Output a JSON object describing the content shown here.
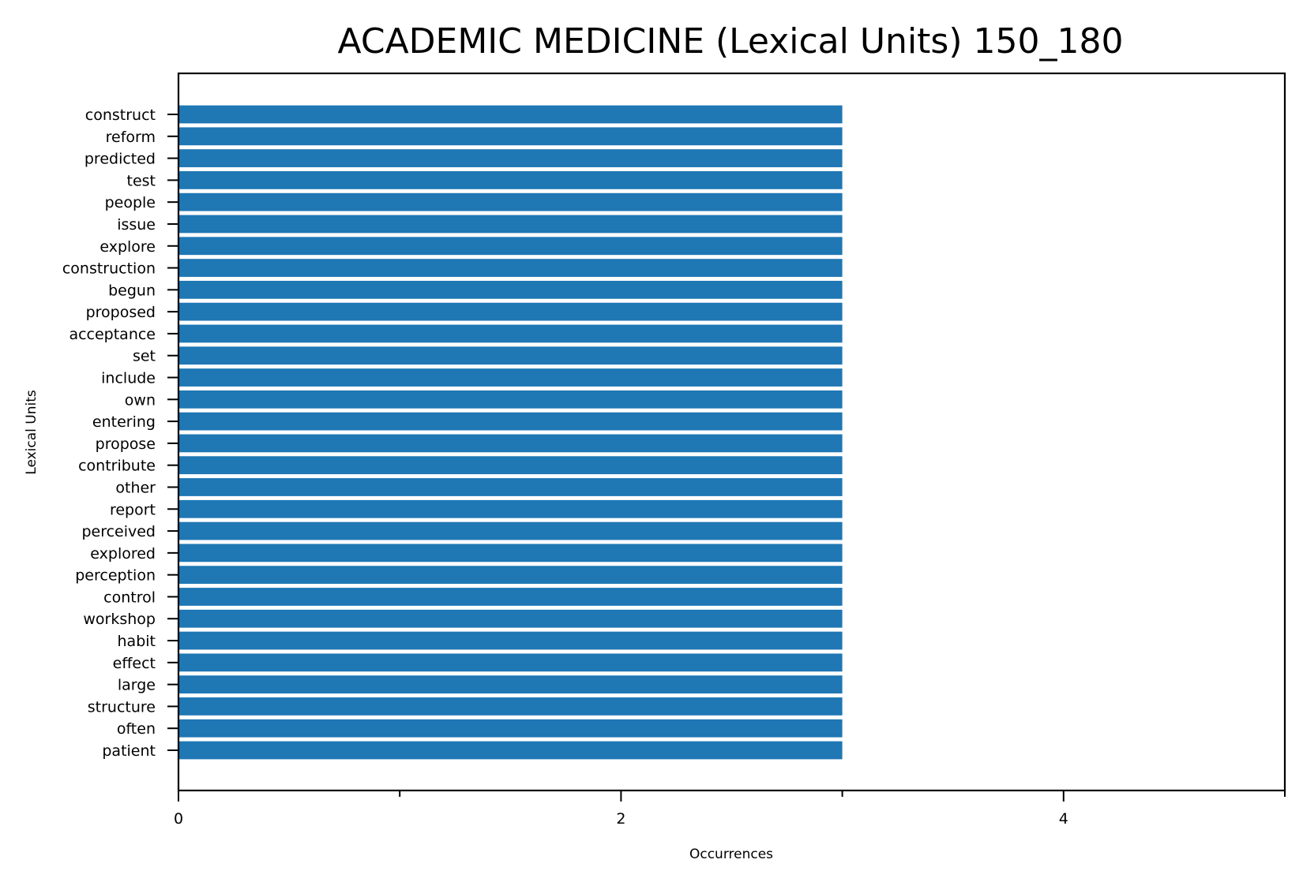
{
  "chart_data": {
    "type": "bar",
    "orientation": "horizontal",
    "title": "ACADEMIC MEDICINE (Lexical Units) 150_180",
    "xlabel": "Occurrences",
    "ylabel": "Lexical Units",
    "xlim": [
      0,
      5
    ],
    "xticks": [
      0,
      2,
      4
    ],
    "categories": [
      "construct",
      "reform",
      "predicted",
      "test",
      "people",
      "issue",
      "explore",
      "construction",
      "begun",
      "proposed",
      "acceptance",
      "set",
      "include",
      "own",
      "entering",
      "propose",
      "contribute",
      "other",
      "report",
      "perceived",
      "explored",
      "perception",
      "control",
      "workshop",
      "habit",
      "effect",
      "large",
      "structure",
      "often",
      "patient"
    ],
    "values": [
      3,
      3,
      3,
      3,
      3,
      3,
      3,
      3,
      3,
      3,
      3,
      3,
      3,
      3,
      3,
      3,
      3,
      3,
      3,
      3,
      3,
      3,
      3,
      3,
      3,
      3,
      3,
      3,
      3,
      3
    ],
    "grid": false,
    "colors": {
      "bar": "#1f77b4"
    }
  }
}
